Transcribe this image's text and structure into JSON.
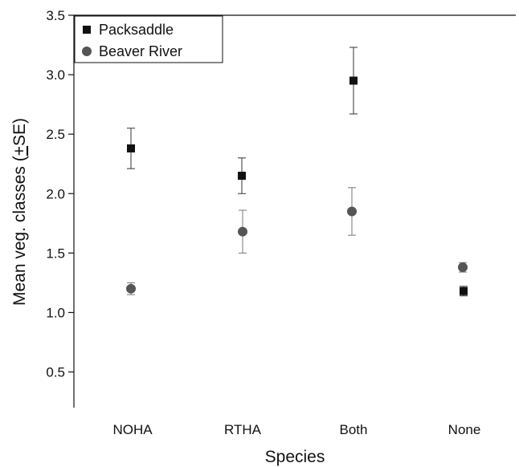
{
  "chart_data": {
    "type": "scatter",
    "title": "",
    "xlabel": "Species",
    "ylabel": "Mean veg. classes (+SE)",
    "ylabel_parts": {
      "before": "Mean veg. classes (",
      "underlined": "+",
      "after": "SE)"
    },
    "categories": [
      "NOHA",
      "RTHA",
      "Both",
      "None"
    ],
    "ylim": [
      0.2,
      3.5
    ],
    "yticks": [
      "0.5",
      "1.0",
      "1.5",
      "2.0",
      "2.5",
      "3.0",
      "3.5"
    ],
    "grid": false,
    "legend_position": "top-left",
    "series": [
      {
        "name": "Packsaddle",
        "marker": "square",
        "color": "#111111",
        "values": [
          2.38,
          2.15,
          2.95,
          1.18
        ],
        "se": [
          0.17,
          0.15,
          0.28,
          0.04
        ]
      },
      {
        "name": "Beaver River",
        "marker": "circle",
        "color": "#555555",
        "values": [
          1.2,
          1.68,
          1.85,
          1.38
        ],
        "se": [
          0.05,
          0.18,
          0.2,
          0.04
        ]
      }
    ]
  }
}
